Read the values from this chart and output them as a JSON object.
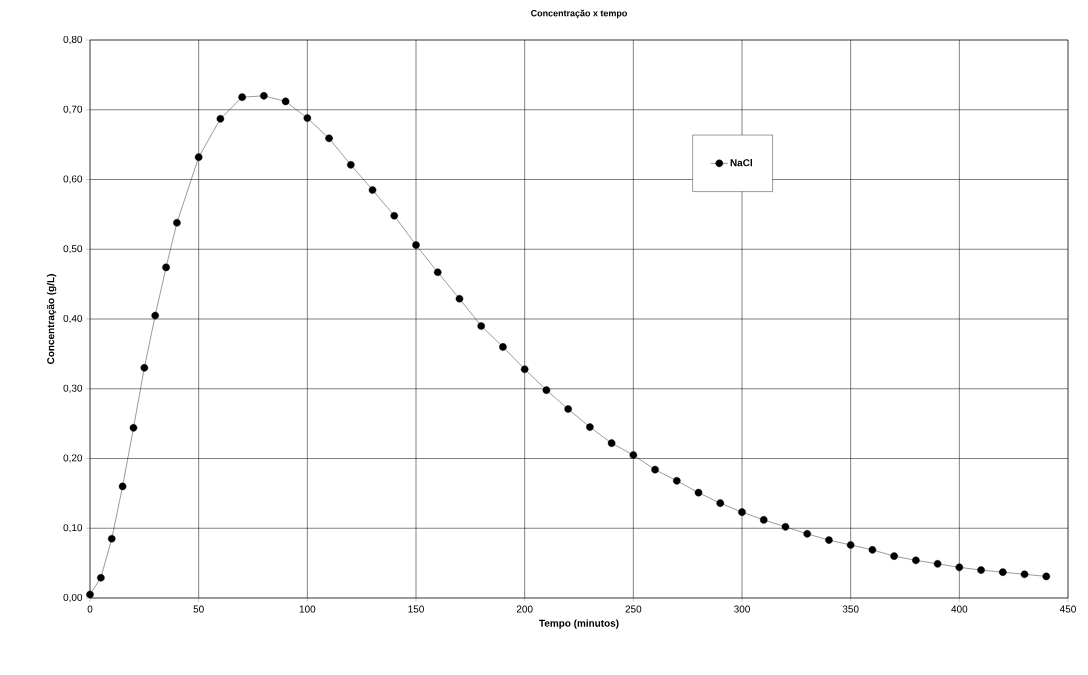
{
  "chart_data": {
    "type": "line",
    "title": "Concentração x tempo",
    "xlabel": "Tempo (minutos)",
    "ylabel": "Concentração (g/L)",
    "x": [
      0,
      5,
      10,
      15,
      20,
      25,
      30,
      35,
      40,
      50,
      60,
      70,
      80,
      90,
      100,
      110,
      120,
      130,
      140,
      150,
      160,
      170,
      180,
      190,
      200,
      210,
      220,
      230,
      240,
      250,
      260,
      270,
      280,
      290,
      300,
      310,
      320,
      330,
      340,
      350,
      360,
      370,
      380,
      390,
      400,
      410,
      420,
      430,
      440
    ],
    "series": [
      {
        "name": "NaCl",
        "color": "#000000",
        "values": [
          0.005,
          0.029,
          0.085,
          0.16,
          0.244,
          0.33,
          0.405,
          0.474,
          0.538,
          0.632,
          0.687,
          0.718,
          0.72,
          0.712,
          0.688,
          0.659,
          0.621,
          0.585,
          0.548,
          0.506,
          0.467,
          0.429,
          0.39,
          0.36,
          0.328,
          0.298,
          0.271,
          0.245,
          0.222,
          0.205,
          0.184,
          0.168,
          0.151,
          0.136,
          0.123,
          0.112,
          0.102,
          0.092,
          0.083,
          0.076,
          0.069,
          0.06,
          0.054,
          0.049,
          0.044,
          0.04,
          0.037,
          0.034,
          0.031
        ]
      }
    ],
    "xlim": [
      0,
      450
    ],
    "xticks": [
      0,
      50,
      100,
      150,
      200,
      250,
      300,
      350,
      400,
      450
    ],
    "ylim": [
      0,
      0.8
    ],
    "yticks": [
      {
        "value": 0,
        "label": "0,00"
      },
      {
        "value": 0.1,
        "label": "0,10"
      },
      {
        "value": 0.2,
        "label": "0,20"
      },
      {
        "value": 0.3,
        "label": "0,30"
      },
      {
        "value": 0.4,
        "label": "0,40"
      },
      {
        "value": 0.5,
        "label": "0,50"
      },
      {
        "value": 0.6,
        "label": "0,60"
      },
      {
        "value": 0.7,
        "label": "0,70"
      },
      {
        "value": 0.8,
        "label": "0,80"
      }
    ],
    "grid": true,
    "legend": "top right",
    "marker": "circle",
    "line_style": "solid"
  }
}
